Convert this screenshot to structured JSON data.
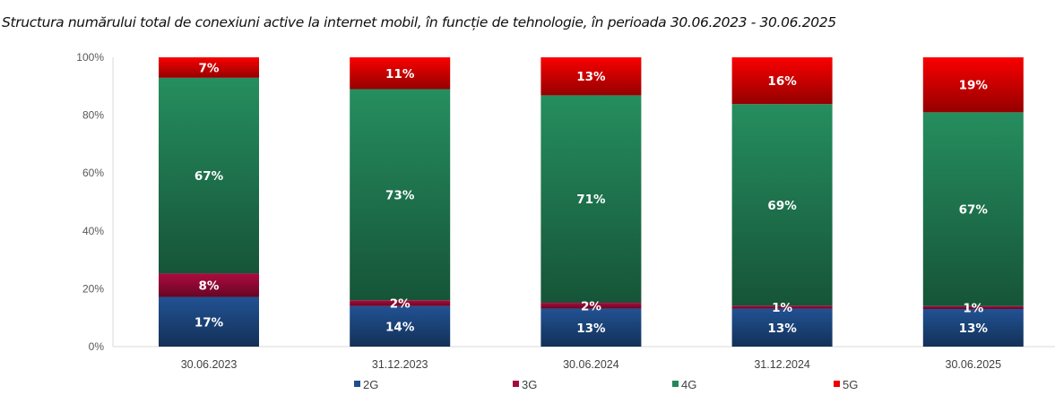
{
  "chart_data": {
    "type": "bar",
    "stacked": true,
    "percent_stacked": true,
    "title": "Structura numărului total de conexiuni active la internet mobil, în funcție de tehnologie, în perioada 30.06.2023 - 30.06.2025",
    "xlabel": "",
    "ylabel": "",
    "ylim": [
      0,
      100
    ],
    "yticks": [
      "0%",
      "20%",
      "40%",
      "60%",
      "80%",
      "100%"
    ],
    "grid": false,
    "legend_position": "bottom",
    "categories": [
      "30.06.2023",
      "31.12.2023",
      "30.06.2024",
      "31.12.2024",
      "30.06.2025"
    ],
    "series": [
      {
        "name": "2G",
        "color": "#1f4e8c",
        "values": [
          17,
          14,
          13,
          13,
          13
        ],
        "labels": [
          "17%",
          "14%",
          "13%",
          "13%",
          "13%"
        ]
      },
      {
        "name": "3G",
        "color": "#a50a3c",
        "values": [
          8,
          2,
          2,
          1,
          1
        ],
        "labels": [
          "8%",
          "2%",
          "2%",
          "1%",
          "1%"
        ]
      },
      {
        "name": "4G",
        "color": "#23875a",
        "values": [
          67,
          73,
          71,
          69,
          67
        ],
        "labels": [
          "67%",
          "73%",
          "71%",
          "69%",
          "67%"
        ]
      },
      {
        "name": "5G",
        "color": "#ee0000",
        "values": [
          7,
          11,
          13,
          16,
          19
        ],
        "labels": [
          "7%",
          "11%",
          "13%",
          "16%",
          "19%"
        ]
      }
    ]
  }
}
